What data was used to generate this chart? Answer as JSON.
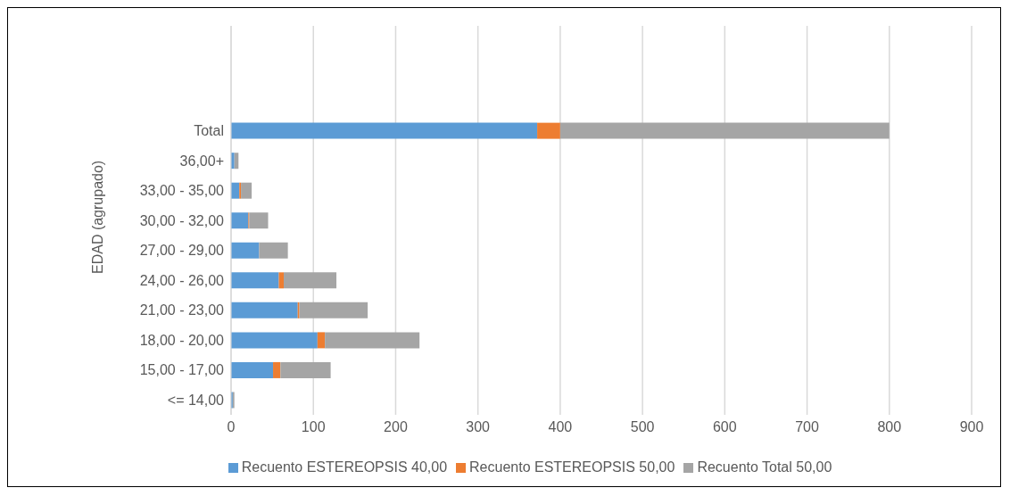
{
  "chart_data": {
    "type": "bar",
    "orientation": "horizontal",
    "stacked": true,
    "ylabel": "EDAD (agrupado)",
    "categories": [
      null,
      null,
      null,
      "Total",
      "36,00+",
      "33,00 - 35,00",
      "30,00 - 32,00",
      "27,00 - 29,00",
      "24,00 - 26,00",
      "21,00 - 23,00",
      "18,00 - 20,00",
      "15,00 - 17,00",
      "<= 14,00"
    ],
    "series": [
      {
        "name": "Recuento ESTEREOPSIS 40,00",
        "color": "#5b9bd5",
        "values": [
          null,
          null,
          null,
          372,
          4,
          10,
          21,
          34,
          58,
          81,
          105,
          51,
          2
        ]
      },
      {
        "name": "Recuento ESTEREOPSIS 50,00",
        "color": "#ed7d31",
        "values": [
          null,
          null,
          null,
          28,
          0,
          2,
          1,
          0,
          6,
          2,
          9,
          9,
          0
        ]
      },
      {
        "name": "Recuento Total 50,00",
        "color": "#a5a5a5",
        "values": [
          null,
          null,
          null,
          400,
          5,
          13,
          23,
          35,
          64,
          83,
          115,
          61,
          2
        ]
      }
    ],
    "xlim": [
      0,
      900
    ],
    "xticks": [
      0,
      100,
      200,
      300,
      400,
      500,
      600,
      700,
      800,
      900
    ],
    "grid": "x",
    "legend": "bottom"
  }
}
